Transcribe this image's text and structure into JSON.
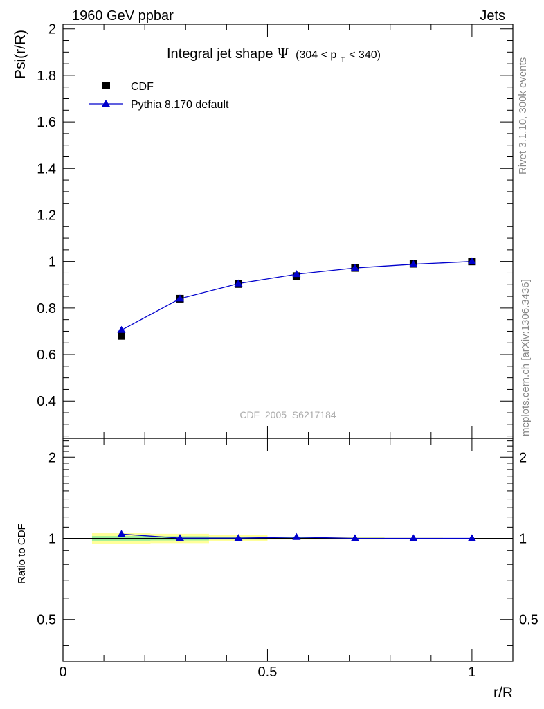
{
  "header": {
    "left": "1960 GeV ppbar",
    "right": "Jets"
  },
  "side_labels": {
    "rivet": "Rivet 3.1.10,  300k events",
    "mcplots": "mcplots.cern.ch [arXiv:1306.3436]"
  },
  "title": {
    "main": "Integral jet shape",
    "symbol": "Ψ",
    "range_prefix": "(304 < p",
    "range_sub": "T",
    "range_suffix": " < 340)"
  },
  "watermark": "CDF_2005_S6217184",
  "colors": {
    "data": "#000000",
    "mc": "#0000cc",
    "band_outer": "#ffff99",
    "band_inner": "#99ee99"
  },
  "chart_data": [
    {
      "type": "scatter",
      "ylabel": "Psi(r/R)",
      "xlim": [
        0,
        1.1
      ],
      "ylim": [
        0.24,
        2.02
      ],
      "x_ticks": [
        0,
        0.5,
        1
      ],
      "y_ticks": [
        0.4,
        0.6,
        0.8,
        1,
        1.2,
        1.4,
        1.6,
        1.8,
        2
      ],
      "y_tick_labels": [
        "0.4",
        "0.6",
        "0.8",
        "1",
        "1.2",
        "1.4",
        "1.6",
        "1.8",
        "2"
      ],
      "legend_position": "top-left",
      "series": [
        {
          "name": "CDF",
          "marker": "square",
          "x": [
            0.143,
            0.286,
            0.429,
            0.571,
            0.714,
            0.857,
            1.0
          ],
          "y": [
            0.68,
            0.84,
            0.903,
            0.937,
            0.972,
            0.99,
            1.0
          ]
        },
        {
          "name": "Pythia 8.170 default",
          "marker": "triangle",
          "x": [
            0.143,
            0.286,
            0.429,
            0.571,
            0.714,
            0.857,
            1.0
          ],
          "y": [
            0.705,
            0.84,
            0.905,
            0.945,
            0.972,
            0.988,
            1.0
          ]
        }
      ]
    },
    {
      "type": "line",
      "ylabel": "Ratio to CDF",
      "xlabel": "r/R",
      "xlim": [
        0,
        1.1
      ],
      "ylim": [
        0.35,
        2.35
      ],
      "y_scale": "log",
      "x_ticks": [
        0,
        0.5,
        1
      ],
      "x_tick_labels": [
        "0",
        "0.5",
        "1"
      ],
      "y_ticks": [
        0.5,
        1,
        2
      ],
      "y_tick_labels": [
        "0.5",
        "1",
        "2"
      ],
      "series": [
        {
          "name": "Pythia 8.170 default",
          "x": [
            0.143,
            0.286,
            0.429,
            0.571,
            0.714,
            0.857,
            1.0
          ],
          "y": [
            1.037,
            1.002,
            1.002,
            1.01,
            1.0,
            1.0,
            1.0
          ]
        }
      ],
      "uncertainty_bands": {
        "x_edges": [
          0.071,
          0.214,
          0.357,
          0.5,
          0.643,
          0.786,
          0.929,
          1.071
        ],
        "outer_lo": [
          0.955,
          0.96,
          0.975,
          0.99,
          0.99,
          0.995,
          0.998
        ],
        "outer_hi": [
          1.045,
          1.04,
          1.03,
          1.015,
          1.01,
          1.005,
          1.002
        ],
        "inner_lo": [
          0.98,
          0.982,
          0.99,
          0.995,
          0.996,
          0.998,
          0.999
        ],
        "inner_hi": [
          1.02,
          1.018,
          1.012,
          1.006,
          1.004,
          1.002,
          1.001
        ]
      }
    }
  ]
}
